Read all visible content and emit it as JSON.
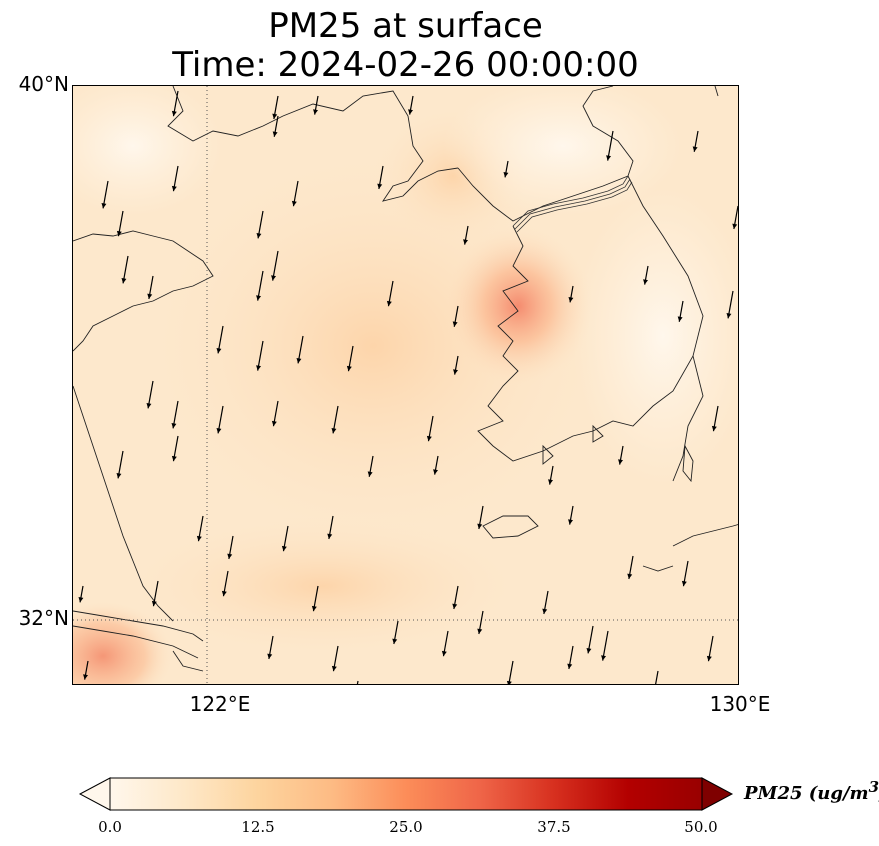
{
  "title": {
    "line1": "PM25 at surface",
    "line2": "Time: 2024-02-26 00:00:00"
  },
  "map": {
    "projection": "PlateCarree",
    "lon_range": [
      120,
      130
    ],
    "lat_range": [
      30.5,
      40
    ],
    "lat_labels": [
      "40°N",
      "32°N"
    ],
    "lon_labels": [
      "122°E",
      "130°E"
    ],
    "gridlines": "dotted at 122°E and 32°N",
    "features": [
      "coastlines",
      "country borders",
      "wind vectors"
    ],
    "wind_direction": "mostly northerly (pointing south)"
  },
  "colorbar": {
    "label": "PM25 (ug/m",
    "label_sup": "3",
    "label_close": ")",
    "ticks": [
      "0.0",
      "12.5",
      "25.0",
      "37.5",
      "50.0"
    ],
    "range": [
      0,
      50
    ],
    "colormap": "OrRd",
    "extend": "both",
    "colors": [
      "#fff7ec",
      "#fee8c8",
      "#fdd49e",
      "#fdbb84",
      "#fc8d59",
      "#ef6548",
      "#d7301f",
      "#b30000",
      "#7f0000"
    ]
  }
}
